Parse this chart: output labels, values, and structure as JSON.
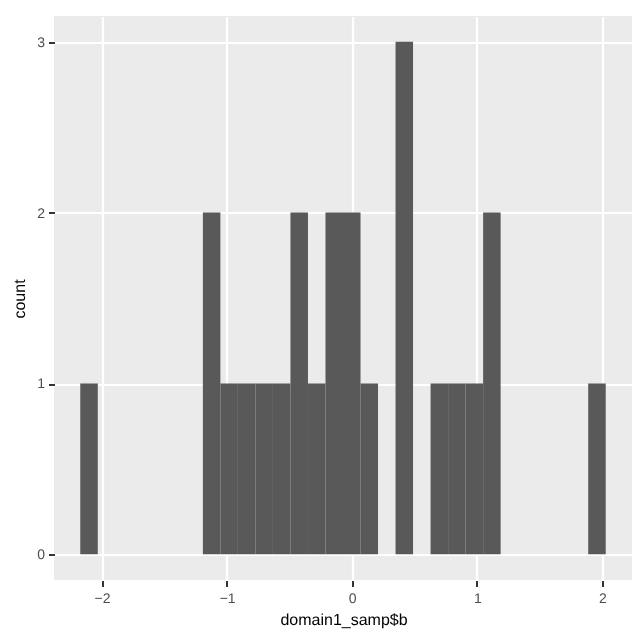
{
  "chart_data": {
    "type": "histogram",
    "xlabel": "domain1_samp$b",
    "ylabel": "count",
    "bins": [
      -2.17,
      -2.03,
      -1.89,
      -1.75,
      -1.61,
      -1.47,
      -1.33,
      -1.19,
      -1.05,
      -0.91,
      -0.77,
      -0.63,
      -0.49,
      -0.35,
      -0.21,
      -0.07,
      0.07,
      0.21,
      0.35,
      0.49,
      0.63,
      0.77,
      0.91,
      1.05,
      1.19,
      1.33,
      1.47,
      1.61,
      1.75,
      1.89,
      2.03
    ],
    "values": [
      1,
      0,
      0,
      0,
      0,
      0,
      0,
      2,
      1,
      1,
      1,
      1,
      2,
      1,
      2,
      2,
      1,
      0,
      3,
      0,
      1,
      1,
      1,
      2,
      0,
      0,
      0,
      0,
      0,
      1
    ],
    "color": "#595959",
    "xlim": [
      -2.38,
      2.24
    ],
    "xticks": [
      -2,
      -1,
      0,
      1,
      2
    ],
    "ylim": [
      -0.15,
      3.15
    ],
    "yticks": [
      0,
      1,
      2,
      3
    ],
    "grid": true
  }
}
